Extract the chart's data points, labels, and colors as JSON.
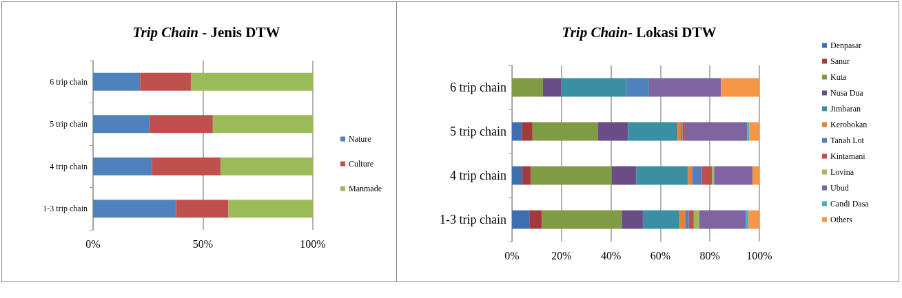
{
  "chart_data": [
    {
      "type": "bar",
      "title": "Trip Chain - Jenis DTW",
      "orientation": "horizontal",
      "stacked": true,
      "categories": [
        "6 trip chain",
        "5 trip chain",
        "4 trip chain",
        "1-3 trip chain"
      ],
      "series": [
        {
          "name": "Nature",
          "color": "#4f81bd",
          "values": [
            21.4,
            25.5,
            26.9,
            37.8
          ]
        },
        {
          "name": "Culture",
          "color": "#c0504d",
          "values": [
            23.1,
            29.0,
            31.2,
            23.8
          ]
        },
        {
          "name": "Manmade",
          "color": "#9bbb59",
          "values": [
            55.5,
            45.5,
            41.9,
            38.4
          ]
        }
      ],
      "xlim": [
        0,
        100
      ],
      "xticks": [
        {
          "value": 0,
          "label": "0%"
        },
        {
          "value": 50,
          "label": "50%"
        },
        {
          "value": 100,
          "label": "100%"
        }
      ],
      "grid": "x",
      "legend": "right"
    },
    {
      "type": "bar",
      "title": "Trip Chain- Lokasi DTW",
      "orientation": "horizontal",
      "stacked": true,
      "categories": [
        "6 trip chain",
        "5 trip chain",
        "4 trip chain",
        "1-3 trip chain"
      ],
      "series": [
        {
          "name": "Denpasar",
          "color": "#3d6eb0",
          "values": [
            0,
            4.0,
            4.2,
            7.2
          ]
        },
        {
          "name": "Sanur",
          "color": "#a5393a",
          "values": [
            0,
            4.3,
            3.5,
            4.9
          ]
        },
        {
          "name": "Kuta",
          "color": "#7f9c44",
          "values": [
            12.5,
            26.4,
            32.6,
            32.3
          ]
        },
        {
          "name": "Nusa Dua",
          "color": "#6a4c86",
          "values": [
            7.3,
            12.2,
            10.0,
            8.5
          ]
        },
        {
          "name": "Jimbaran",
          "color": "#3a8fa3",
          "values": [
            26.3,
            20.0,
            20.8,
            14.9
          ]
        },
        {
          "name": "Kerobokan",
          "color": "#e0823a",
          "values": [
            0,
            1.4,
            1.8,
            2.2
          ]
        },
        {
          "name": "Tanah Lot",
          "color": "#4f81bd",
          "values": [
            9.3,
            0.7,
            3.8,
            1.5
          ]
        },
        {
          "name": "Kintamani",
          "color": "#c0504d",
          "values": [
            0,
            0.9,
            4.1,
            2.0
          ]
        },
        {
          "name": "Lovina",
          "color": "#9bbb59",
          "values": [
            0,
            0,
            0.9,
            2.2
          ]
        },
        {
          "name": "Ubud",
          "color": "#8064a2",
          "values": [
            29.1,
            25.2,
            15.5,
            18.8
          ]
        },
        {
          "name": "Candi Dasa",
          "color": "#4bacc6",
          "values": [
            0,
            0.9,
            0,
            1.1
          ]
        },
        {
          "name": "Others",
          "color": "#f79646",
          "values": [
            15.5,
            4.0,
            2.8,
            4.4
          ]
        }
      ],
      "xlim": [
        0,
        100
      ],
      "xticks": [
        {
          "value": 0,
          "label": "0%"
        },
        {
          "value": 20,
          "label": "20%"
        },
        {
          "value": 40,
          "label": "40%"
        },
        {
          "value": 60,
          "label": "60%"
        },
        {
          "value": 80,
          "label": "80%"
        },
        {
          "value": 100,
          "label": "100%"
        }
      ],
      "grid": "x",
      "legend": "right"
    }
  ]
}
